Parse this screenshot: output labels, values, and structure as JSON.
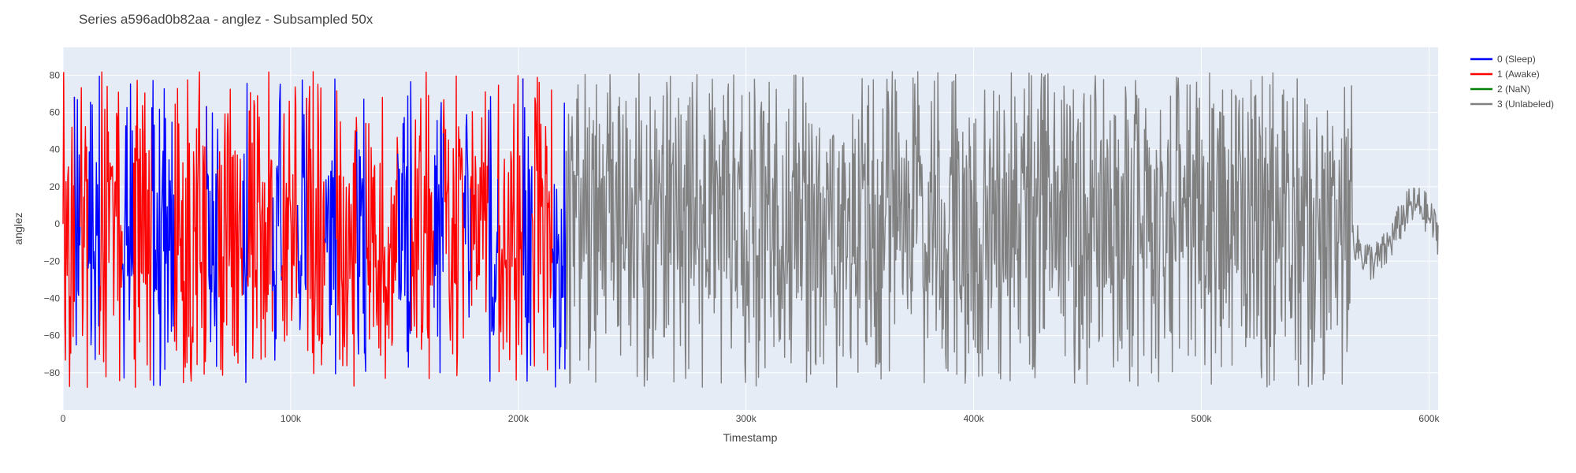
{
  "chart_data": {
    "type": "line",
    "title": "Series a596ad0b82aa - anglez - Subsampled 50x",
    "xlabel": "Timestamp",
    "ylabel": "anglez",
    "xlim": [
      0,
      604000
    ],
    "ylim": [
      -100,
      95
    ],
    "x_ticks": [
      0,
      100000,
      200000,
      300000,
      400000,
      500000,
      600000
    ],
    "x_tick_labels": [
      "0",
      "100k",
      "200k",
      "300k",
      "400k",
      "500k",
      "600k"
    ],
    "y_ticks": [
      -80,
      -60,
      -40,
      -20,
      0,
      20,
      40,
      60,
      80
    ],
    "y_tick_labels": [
      "−80",
      "−60",
      "−40",
      "−20",
      "0",
      "20",
      "40",
      "60",
      "80"
    ],
    "grid": true,
    "legend_position": "right",
    "plot_background": "#e5ecf6",
    "series": [
      {
        "name": "0 (Sleep)",
        "color": "#0000ff"
      },
      {
        "name": "1 (Awake)",
        "color": "#ff0000"
      },
      {
        "name": "2 (NaN)",
        "color": "#008000"
      },
      {
        "name": "3 (Unlabeled)",
        "color": "#808080"
      }
    ],
    "segments": [
      {
        "series": 1,
        "x": [
          0,
          5000
        ]
      },
      {
        "series": 0,
        "x": [
          5000,
          7500
        ]
      },
      {
        "series": 1,
        "x": [
          7500,
          11000
        ]
      },
      {
        "series": 0,
        "x": [
          11000,
          16000
        ]
      },
      {
        "series": 1,
        "x": [
          16000,
          26000
        ]
      },
      {
        "series": 0,
        "x": [
          26000,
          31000
        ]
      },
      {
        "series": 1,
        "x": [
          31000,
          39000
        ]
      },
      {
        "series": 0,
        "x": [
          39000,
          49000
        ]
      },
      {
        "series": 1,
        "x": [
          49000,
          63000
        ]
      },
      {
        "series": 0,
        "x": [
          63000,
          68000
        ]
      },
      {
        "series": 1,
        "x": [
          68000,
          79000
        ]
      },
      {
        "series": 0,
        "x": [
          79000,
          81000
        ]
      },
      {
        "series": 1,
        "x": [
          81000,
          92000
        ]
      },
      {
        "series": 0,
        "x": [
          92000,
          96000
        ]
      },
      {
        "series": 1,
        "x": [
          96000,
          103000
        ]
      },
      {
        "series": 0,
        "x": [
          103000,
          107000
        ]
      },
      {
        "series": 1,
        "x": [
          107000,
          115000
        ]
      },
      {
        "series": 0,
        "x": [
          115000,
          120000
        ]
      },
      {
        "series": 1,
        "x": [
          120000,
          129000
        ]
      },
      {
        "series": 0,
        "x": [
          129000,
          133000
        ]
      },
      {
        "series": 1,
        "x": [
          133000,
          147000
        ]
      },
      {
        "series": 0,
        "x": [
          147000,
          153000
        ]
      },
      {
        "series": 1,
        "x": [
          153000,
          163000
        ]
      },
      {
        "series": 0,
        "x": [
          163000,
          167000
        ]
      },
      {
        "series": 1,
        "x": [
          167000,
          176000
        ]
      },
      {
        "series": 0,
        "x": [
          176000,
          179000
        ]
      },
      {
        "series": 1,
        "x": [
          179000,
          187000
        ]
      },
      {
        "series": 0,
        "x": [
          187000,
          191000
        ]
      },
      {
        "series": 1,
        "x": [
          191000,
          202000
        ]
      },
      {
        "series": 0,
        "x": [
          202000,
          206000
        ]
      },
      {
        "series": 1,
        "x": [
          206000,
          215000
        ]
      },
      {
        "series": 0,
        "x": [
          215000,
          221000
        ]
      },
      {
        "series": 3,
        "x": [
          221000,
          566000
        ]
      },
      {
        "series": 3,
        "x": [
          566000,
          604000
        ]
      }
    ]
  }
}
